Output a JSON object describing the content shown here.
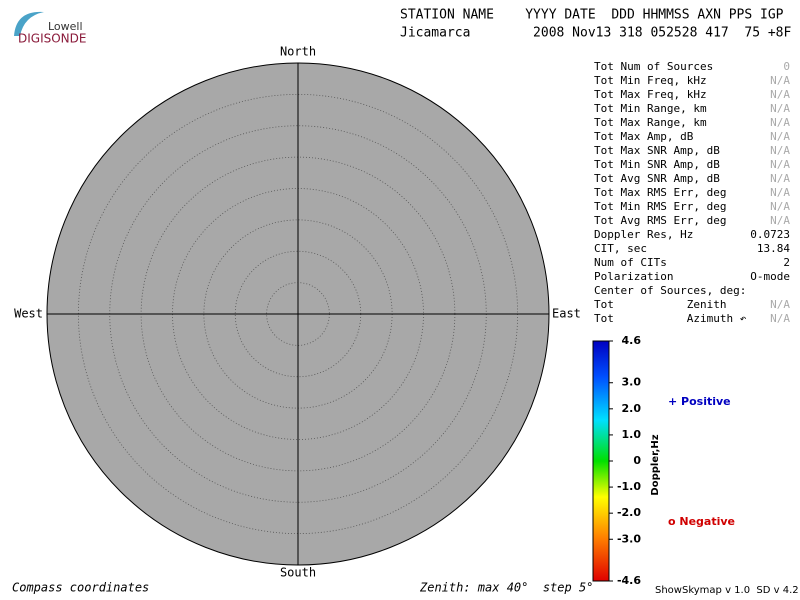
{
  "logo": {
    "top": "Lowell",
    "bottom": "DIGISONDE"
  },
  "header": {
    "labels": "STATION NAME    YYYY DATE  DDD HHMMSS AXN PPS IGP",
    "values": "Jicamarca        2008 Nov13 318 052528 417  75 +8F"
  },
  "compass": {
    "north": "North",
    "south": "South",
    "east": "East",
    "west": "West"
  },
  "stats": [
    {
      "label": "Tot Num of Sources",
      "value": "0"
    },
    {
      "label": "Tot Min Freq, kHz",
      "value": "N/A"
    },
    {
      "label": "Tot Max Freq, kHz",
      "value": "N/A"
    },
    {
      "label": "Tot Min Range, km",
      "value": "N/A"
    },
    {
      "label": "Tot Max Range, km",
      "value": "N/A"
    },
    {
      "label": "Tot Max Amp, dB",
      "value": "N/A"
    },
    {
      "label": "Tot Max SNR Amp, dB",
      "value": "N/A"
    },
    {
      "label": "Tot Min SNR Amp, dB",
      "value": "N/A"
    },
    {
      "label": "Tot Avg SNR Amp, dB",
      "value": "N/A"
    },
    {
      "label": "Tot Max RMS Err, deg",
      "value": "N/A"
    },
    {
      "label": "Tot Min RMS Err, deg",
      "value": "N/A"
    },
    {
      "label": "Tot Avg RMS Err, deg",
      "value": "N/A"
    },
    {
      "label": "Doppler Res, Hz",
      "value": "0.0723"
    },
    {
      "label": "CIT, sec",
      "value": "13.84"
    },
    {
      "label": "Num of CITs",
      "value": "2"
    },
    {
      "label": "Polarization",
      "value": "O-mode"
    },
    {
      "label": "Center of Sources, deg:"
    },
    {
      "label": "Tot           Zenith",
      "value": "N/A"
    },
    {
      "label": "Tot           Azimuth ↶",
      "value": "N/A"
    }
  ],
  "colorbar": {
    "label": "Doppler,Hz",
    "lim": [
      -4.6,
      4.6
    ],
    "ticks": [
      4.6,
      {
        "value": 3,
        "label": "3.0"
      },
      {
        "value": 2,
        "label": "2.0"
      },
      {
        "value": 1,
        "label": "1.0"
      },
      0,
      {
        "value": -1,
        "label": "-1.0"
      },
      {
        "value": -2,
        "label": "-2.0"
      },
      {
        "value": -3,
        "label": "-3.0"
      },
      -4.6
    ]
  },
  "legend": {
    "positive": "+ Positive",
    "negative": "o Negative"
  },
  "footer": {
    "left": "Compass coordinates",
    "center": "Zenith: max 40°  step 5°",
    "right": "ShowSkymap v 1.0  SD v 4.2"
  }
}
